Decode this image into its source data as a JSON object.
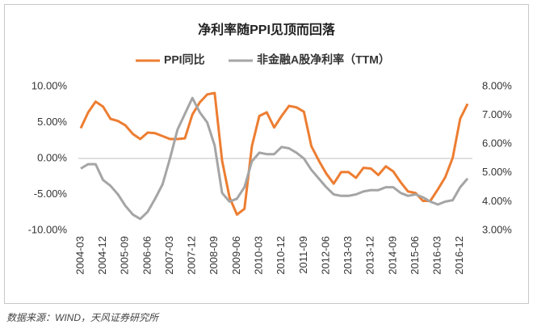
{
  "chart_data": {
    "type": "line",
    "title": "净利率随PPI见顶而回落",
    "source": "数据来源：WIND，天风证券研究所",
    "categories": [
      "2004-03",
      null,
      null,
      "2004-12",
      null,
      null,
      "2005-09",
      null,
      null,
      "2006-06",
      null,
      null,
      "2007-03",
      null,
      null,
      "2007-12",
      null,
      null,
      "2008-09",
      null,
      null,
      "2009-06",
      null,
      null,
      "2010-03",
      null,
      null,
      "2010-12",
      null,
      null,
      "2011-09",
      null,
      null,
      "2012-06",
      null,
      null,
      "2013-03",
      null,
      null,
      "2013-12",
      null,
      null,
      "2014-09",
      null,
      null,
      "2015-06",
      null,
      null,
      "2016-03",
      null,
      null,
      "2016-12",
      null
    ],
    "series": [
      {
        "name": "PPI同比",
        "color": "#ed7d31",
        "axis": "y",
        "values": [
          4.2,
          6.4,
          7.9,
          7.2,
          5.5,
          5.2,
          4.6,
          3.4,
          2.7,
          3.6,
          3.5,
          3.1,
          2.7,
          2.7,
          2.8,
          6.1,
          7.8,
          8.9,
          9.1,
          -0.3,
          -5.4,
          -7.8,
          -7.0,
          1.7,
          5.9,
          6.4,
          4.3,
          5.9,
          7.3,
          7.1,
          6.5,
          1.7,
          -0.3,
          -2.1,
          -3.5,
          -1.9,
          -1.9,
          -2.7,
          -1.3,
          -1.4,
          -2.3,
          -1.1,
          -1.8,
          -3.3,
          -4.6,
          -4.8,
          -5.9,
          -5.9,
          -4.3,
          -2.6,
          0.1,
          5.5,
          7.6
        ]
      },
      {
        "name": "非金融A股净利率（TTM）",
        "color": "#a5a5a5",
        "axis": "y2",
        "values": [
          5.15,
          5.3,
          5.3,
          4.75,
          4.55,
          4.25,
          3.85,
          3.55,
          3.4,
          3.65,
          4.1,
          4.6,
          5.5,
          6.5,
          7.05,
          7.6,
          7.1,
          6.75,
          5.95,
          4.3,
          4.0,
          4.1,
          4.5,
          5.4,
          5.7,
          5.65,
          5.65,
          5.9,
          5.85,
          5.7,
          5.5,
          5.1,
          4.8,
          4.5,
          4.25,
          4.2,
          4.2,
          4.25,
          4.35,
          4.4,
          4.4,
          4.5,
          4.5,
          4.3,
          4.2,
          4.25,
          4.15,
          4.0,
          3.9,
          4.0,
          4.05,
          4.5,
          4.8
        ]
      }
    ],
    "ylim": [
      -10,
      10
    ],
    "yticks": [
      {
        "value": 10,
        "label": "10.00%"
      },
      {
        "value": 5,
        "label": "5.00%"
      },
      {
        "value": 0,
        "label": "0.00%"
      },
      {
        "value": -5,
        "label": "-5.00%"
      },
      {
        "value": -10,
        "label": "-10.00%"
      }
    ],
    "y2lim": [
      3,
      8
    ],
    "y2ticks": [
      {
        "value": 8,
        "label": "8.00%"
      },
      {
        "value": 7,
        "label": "7.00%"
      },
      {
        "value": 6,
        "label": "6.00%"
      },
      {
        "value": 5,
        "label": "5.00%"
      },
      {
        "value": 4,
        "label": "4.00%"
      },
      {
        "value": 3,
        "label": "3.00%"
      }
    ],
    "grid": false
  }
}
